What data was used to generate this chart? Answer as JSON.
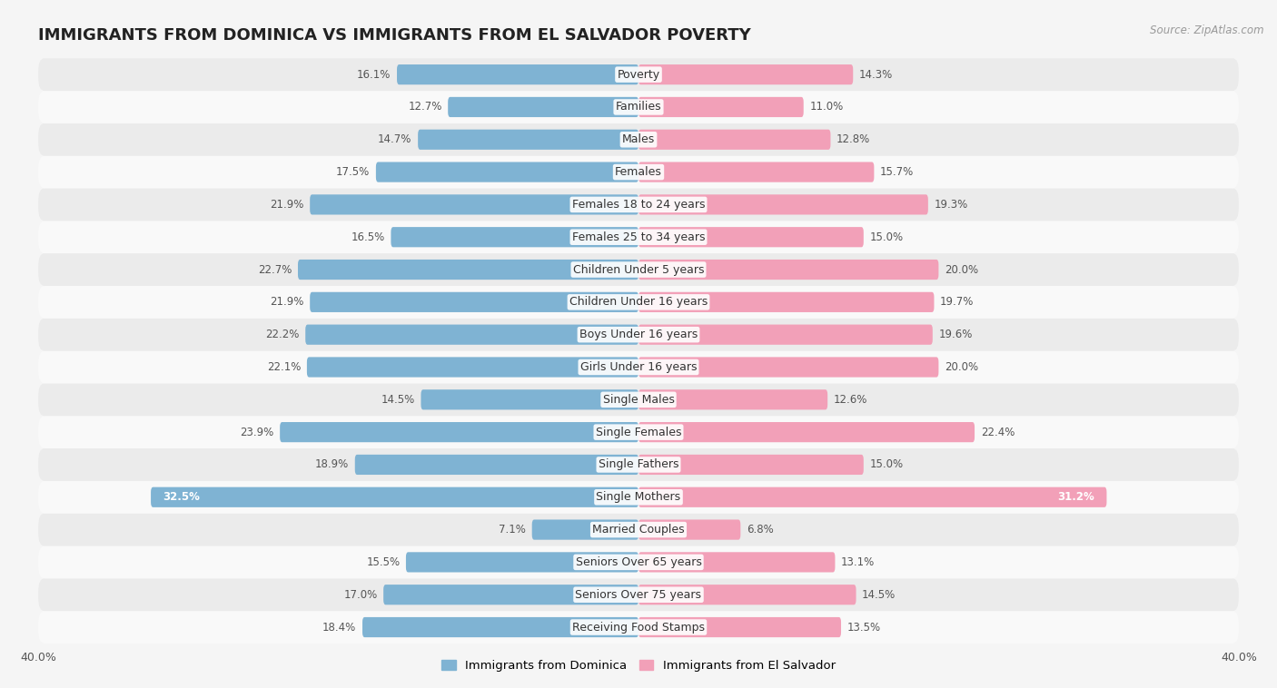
{
  "title": "IMMIGRANTS FROM DOMINICA VS IMMIGRANTS FROM EL SALVADOR POVERTY",
  "source": "Source: ZipAtlas.com",
  "categories": [
    "Poverty",
    "Families",
    "Males",
    "Females",
    "Females 18 to 24 years",
    "Females 25 to 34 years",
    "Children Under 5 years",
    "Children Under 16 years",
    "Boys Under 16 years",
    "Girls Under 16 years",
    "Single Males",
    "Single Females",
    "Single Fathers",
    "Single Mothers",
    "Married Couples",
    "Seniors Over 65 years",
    "Seniors Over 75 years",
    "Receiving Food Stamps"
  ],
  "dominica_values": [
    16.1,
    12.7,
    14.7,
    17.5,
    21.9,
    16.5,
    22.7,
    21.9,
    22.2,
    22.1,
    14.5,
    23.9,
    18.9,
    32.5,
    7.1,
    15.5,
    17.0,
    18.4
  ],
  "elsalvador_values": [
    14.3,
    11.0,
    12.8,
    15.7,
    19.3,
    15.0,
    20.0,
    19.7,
    19.6,
    20.0,
    12.6,
    22.4,
    15.0,
    31.2,
    6.8,
    13.1,
    14.5,
    13.5
  ],
  "dominica_color": "#7fb3d3",
  "elsalvador_color": "#f2a0b8",
  "background_color": "#f5f5f5",
  "row_light": "#f9f9f9",
  "row_dark": "#ebebeb",
  "xlim": 40.0,
  "legend_dominica": "Immigrants from Dominica",
  "legend_elsalvador": "Immigrants from El Salvador",
  "title_fontsize": 13,
  "label_fontsize": 9,
  "value_fontsize": 8.5
}
